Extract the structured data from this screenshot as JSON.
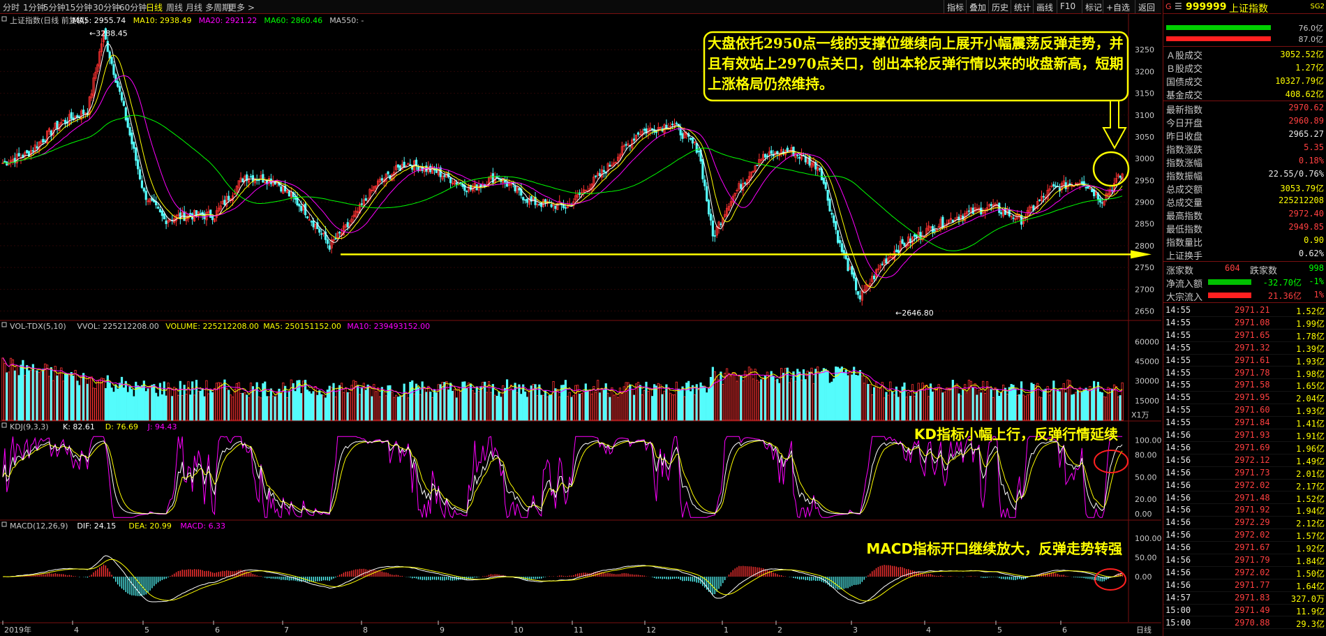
{
  "toolbar": {
    "periods": [
      "分时",
      "1分钟",
      "5分钟",
      "15分钟",
      "30分钟",
      "60分钟",
      "日线",
      "周线",
      "月线",
      "多周期",
      "更多 >"
    ],
    "active_period": "日线",
    "buttons": [
      "指标",
      "叠加",
      "历史",
      "统计",
      "画线",
      "F10",
      "标记",
      "+自选",
      "返回"
    ]
  },
  "main": {
    "title": "上证指数(日线 前复权)",
    "ma_labels": [
      {
        "text": "MA5: 2955.74",
        "color": "#ffffff"
      },
      {
        "text": "MA10: 2938.49",
        "color": "#ffff00"
      },
      {
        "text": "MA20: 2921.22",
        "color": "#ff00ff"
      },
      {
        "text": "MA60: 2860.46",
        "color": "#00ff00"
      },
      {
        "text": "MA550: -",
        "color": "#c8c8c8"
      }
    ],
    "y_ticks": [
      "3250",
      "3200",
      "3150",
      "3100",
      "3050",
      "3000",
      "2950",
      "2900",
      "2850",
      "2800",
      "2750",
      "2700",
      "2650"
    ],
    "high_label": "3288.45",
    "low_label": "2646.80",
    "annotation": "大盘依托2950点一线的支撑位继续向上展开小幅震荡反弹走势，并且有效站上2970点关口，创出本轮反弹行情以来的收盘新高，短期上涨格局仍然维持。"
  },
  "volume": {
    "title": "VOL-TDX(5,10)",
    "labels": [
      {
        "text": "VVOL: 225212208.00",
        "color": "#c8c8c8"
      },
      {
        "text": "VOLUME: 225212208.00",
        "color": "#ffff00"
      },
      {
        "text": "MA5: 250151152.00",
        "color": "#ffff00"
      },
      {
        "text": "MA10: 239493152.00",
        "color": "#ff00ff"
      }
    ],
    "y_ticks": [
      "60000",
      "45000",
      "30000",
      "15000"
    ],
    "unit": "X1万"
  },
  "kdj": {
    "title": "KDJ(9,3,3)",
    "labels": [
      {
        "text": "K: 82.61",
        "color": "#ffffff"
      },
      {
        "text": "D: 76.69",
        "color": "#ffff00"
      },
      {
        "text": "J: 94.43",
        "color": "#ff00ff"
      }
    ],
    "y_ticks": [
      "100.00",
      "80.00",
      "50.00",
      "20.00",
      "0.00"
    ],
    "annotation": "KD指标小幅上行，反弹行情延续"
  },
  "macd": {
    "title": "MACD(12,26,9)",
    "labels": [
      {
        "text": "DIF: 24.15",
        "color": "#ffffff"
      },
      {
        "text": "DEA: 20.99",
        "color": "#ffff00"
      },
      {
        "text": "MACD: 6.33",
        "color": "#ff00ff"
      }
    ],
    "y_ticks": [
      "100.00",
      "50.00",
      "0.00"
    ],
    "annotation": "MACD指标开口继续放大，反弹走势转强"
  },
  "x_axis": [
    "2019年",
    "4",
    "5",
    "6",
    "7",
    "8",
    "9",
    "10",
    "11",
    "12",
    "1",
    "2",
    "3",
    "4",
    "5",
    "6"
  ],
  "x_axis_right": "日线",
  "panel": {
    "header_code": "999999",
    "header_name": "上证指数",
    "header_badge": "SG2",
    "bar_values": [
      "76.0亿",
      "87.0亿"
    ],
    "stats": [
      {
        "k": "Ａ股成交",
        "v": "3052.52亿",
        "c": "#ffff00"
      },
      {
        "k": "Ｂ股成交",
        "v": "1.27亿",
        "c": "#ffff00"
      },
      {
        "k": "国债成交",
        "v": "10327.79亿",
        "c": "#ffff00"
      },
      {
        "k": "基金成交",
        "v": "408.62亿",
        "c": "#ffff00"
      }
    ],
    "quotes": [
      {
        "k": "最新指数",
        "v": "2970.62",
        "c": "#ff4040"
      },
      {
        "k": "今日开盘",
        "v": "2960.89",
        "c": "#ff4040"
      },
      {
        "k": "昨日收盘",
        "v": "2965.27",
        "c": "#e8e8e8"
      },
      {
        "k": "指数涨跌",
        "v": "5.35",
        "c": "#ff4040"
      },
      {
        "k": "指数涨幅",
        "v": "0.18%",
        "c": "#ff4040"
      },
      {
        "k": "指数振幅",
        "v": "22.55/0.76%",
        "c": "#e8e8e8"
      },
      {
        "k": "总成交额",
        "v": "3053.79亿",
        "c": "#ffff00"
      },
      {
        "k": "总成交量",
        "v": "225212208",
        "c": "#ffff00"
      },
      {
        "k": "最高指数",
        "v": "2972.40",
        "c": "#ff4040"
      },
      {
        "k": "最低指数",
        "v": "2949.85",
        "c": "#ff4040"
      },
      {
        "k": "指数量比",
        "v": "0.90",
        "c": "#ffff00"
      },
      {
        "k": "上证换手",
        "v": "0.62%",
        "c": "#e8e8e8"
      }
    ],
    "updown": {
      "k1": "涨家数",
      "v1": "604",
      "k2": "跌家数",
      "v2": "998"
    },
    "flows": [
      {
        "k": "净流入额",
        "v": "-32.70亿",
        "p": "-1%",
        "c": "#00ff00",
        "bar": "#00c000"
      },
      {
        "k": "大宗流入",
        "v": "21.36亿",
        "p": "1%",
        "c": "#ff4040",
        "bar": "#ff2020"
      }
    ],
    "ticks": [
      [
        "14:55",
        "2971.21",
        "1.52亿"
      ],
      [
        "14:55",
        "2971.08",
        "1.99亿"
      ],
      [
        "14:55",
        "2971.65",
        "1.78亿"
      ],
      [
        "14:55",
        "2971.32",
        "1.39亿"
      ],
      [
        "14:55",
        "2971.61",
        "1.93亿"
      ],
      [
        "14:55",
        "2971.78",
        "1.98亿"
      ],
      [
        "14:55",
        "2971.58",
        "1.65亿"
      ],
      [
        "14:55",
        "2971.95",
        "2.04亿"
      ],
      [
        "14:55",
        "2971.60",
        "1.93亿"
      ],
      [
        "14:55",
        "2971.84",
        "1.41亿"
      ],
      [
        "14:56",
        "2971.93",
        "1.91亿"
      ],
      [
        "14:56",
        "2971.69",
        "1.96亿"
      ],
      [
        "14:56",
        "2972.12",
        "1.49亿"
      ],
      [
        "14:56",
        "2971.73",
        "2.01亿"
      ],
      [
        "14:56",
        "2972.02",
        "2.17亿"
      ],
      [
        "14:56",
        "2971.48",
        "1.52亿"
      ],
      [
        "14:56",
        "2971.92",
        "1.94亿"
      ],
      [
        "14:56",
        "2972.29",
        "2.12亿"
      ],
      [
        "14:56",
        "2972.02",
        "1.57亿"
      ],
      [
        "14:56",
        "2971.67",
        "1.92亿"
      ],
      [
        "14:56",
        "2971.79",
        "1.84亿"
      ],
      [
        "14:56",
        "2972.02",
        "1.50亿"
      ],
      [
        "14:56",
        "2971.77",
        "1.64亿"
      ],
      [
        "14:57",
        "2971.83",
        "327.0万"
      ],
      [
        "15:00",
        "2971.49",
        "11.9亿"
      ],
      [
        "15:00",
        "2970.88",
        "29.3亿"
      ]
    ]
  },
  "colors": {
    "up": "#ff3232",
    "down": "#54fcfc",
    "ma5": "#ffffff",
    "ma10": "#ffff00",
    "ma20": "#ff00ff",
    "ma60": "#00ff00",
    "frame": "#7a1010",
    "annotation": "#ffff00",
    "circle": "#ff2020"
  },
  "chart_data": {
    "type": "candlestick",
    "key_prices": [
      {
        "label": "high",
        "value": 3288.45
      },
      {
        "label": "low",
        "value": 2646.8
      },
      {
        "label": "support",
        "value": 2780
      }
    ],
    "ylim_price": [
      2630,
      3300
    ]
  }
}
